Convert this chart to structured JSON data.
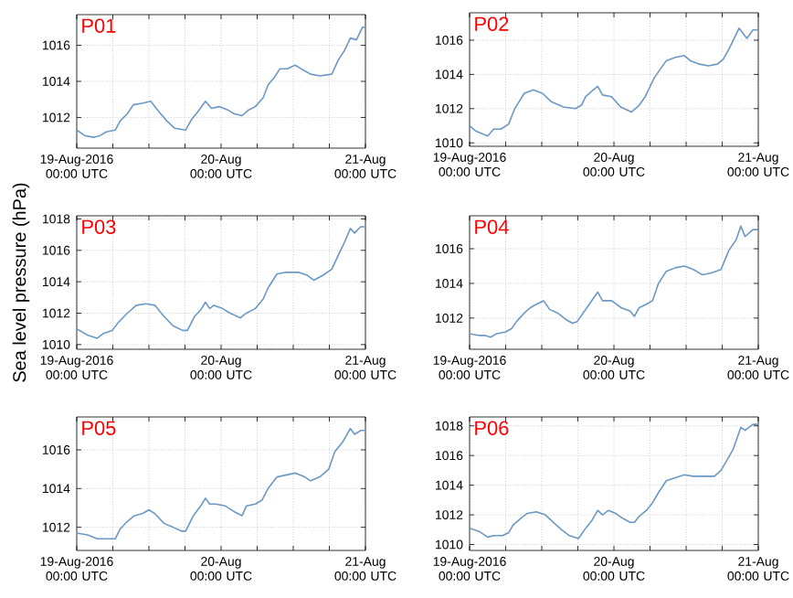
{
  "chart_data": [
    {
      "type": "line",
      "title": "P01",
      "xlim": [
        "2016-08-19T00:00",
        "2016-08-21T00:00"
      ],
      "ylim": [
        1010.3,
        1017.7
      ],
      "grid": true,
      "xticks": [
        {
          "value": "2016-08-19T00:00",
          "label": "19-Aug-2016 00:00 UTC"
        },
        {
          "value": "2016-08-19T06:00",
          "label": null
        },
        {
          "value": "2016-08-19T12:00",
          "label": null
        },
        {
          "value": "2016-08-19T18:00",
          "label": null
        },
        {
          "value": "2016-08-20T00:00",
          "label": "20-Aug 00:00 UTC"
        },
        {
          "value": "2016-08-20T06:00",
          "label": null
        },
        {
          "value": "2016-08-20T12:00",
          "label": null
        },
        {
          "value": "2016-08-20T18:00",
          "label": null
        },
        {
          "value": "2016-08-21T00:00",
          "label": "21-Aug 00:00 UTC"
        }
      ],
      "yticks": [
        1012,
        1014,
        1016
      ],
      "x": [
        "2016-08-19T00:00",
        "2016-08-19T01:18",
        "2016-08-19T02:48",
        "2016-08-19T03:54",
        "2016-08-19T04:54",
        "2016-08-19T06:24",
        "2016-08-19T07:12",
        "2016-08-19T08:24",
        "2016-08-19T09:24",
        "2016-08-19T11:00",
        "2016-08-19T12:18",
        "2016-08-19T13:42",
        "2016-08-19T15:00",
        "2016-08-19T16:18",
        "2016-08-19T18:06",
        "2016-08-19T19:06",
        "2016-08-19T20:06",
        "2016-08-19T21:24",
        "2016-08-19T22:24",
        "2016-08-19T23:42",
        "2016-08-20T01:12",
        "2016-08-20T02:12",
        "2016-08-20T03:30",
        "2016-08-20T04:30",
        "2016-08-20T05:42",
        "2016-08-20T07:00",
        "2016-08-20T07:48",
        "2016-08-20T08:48",
        "2016-08-20T09:48",
        "2016-08-20T11:00",
        "2016-08-20T12:18",
        "2016-08-20T13:18",
        "2016-08-20T14:54",
        "2016-08-20T16:24",
        "2016-08-20T18:24",
        "2016-08-20T19:30",
        "2016-08-20T20:30",
        "2016-08-20T21:30",
        "2016-08-20T22:30",
        "2016-08-20T23:30",
        "2016-08-21T00:00"
      ],
      "series": [
        {
          "color": "#6b98c4",
          "values": [
            1011.3,
            1011.0,
            1010.9,
            1011.0,
            1011.2,
            1011.3,
            1011.8,
            1012.2,
            1012.7,
            1012.8,
            1012.9,
            1012.3,
            1011.8,
            1011.4,
            1011.3,
            1011.9,
            1012.3,
            1012.9,
            1012.5,
            1012.6,
            1012.4,
            1012.2,
            1012.1,
            1012.4,
            1012.6,
            1013.1,
            1013.8,
            1014.2,
            1014.7,
            1014.7,
            1014.9,
            1014.7,
            1014.4,
            1014.3,
            1014.4,
            1015.2,
            1015.7,
            1016.4,
            1016.3,
            1017.0,
            1017.0
          ]
        }
      ]
    },
    {
      "type": "line",
      "title": "P02",
      "xlim": [
        "2016-08-19T00:00",
        "2016-08-21T00:00"
      ],
      "ylim": [
        1009.8,
        1017.6
      ],
      "grid": true,
      "xticks": [
        {
          "value": "2016-08-19T00:00",
          "label": "19-Aug-2016 00:00 UTC"
        },
        {
          "value": "2016-08-19T06:00",
          "label": null
        },
        {
          "value": "2016-08-19T12:00",
          "label": null
        },
        {
          "value": "2016-08-19T18:00",
          "label": null
        },
        {
          "value": "2016-08-20T00:00",
          "label": "20-Aug 00:00 UTC"
        },
        {
          "value": "2016-08-20T06:00",
          "label": null
        },
        {
          "value": "2016-08-20T12:00",
          "label": null
        },
        {
          "value": "2016-08-20T18:00",
          "label": null
        },
        {
          "value": "2016-08-21T00:00",
          "label": "21-Aug 00:00 UTC"
        }
      ],
      "yticks": [
        1010,
        1012,
        1014,
        1016
      ],
      "x": [
        "2016-08-19T00:00",
        "2016-08-19T01:00",
        "2016-08-19T03:00",
        "2016-08-19T04:00",
        "2016-08-19T05:12",
        "2016-08-19T06:30",
        "2016-08-19T07:30",
        "2016-08-19T09:06",
        "2016-08-19T10:36",
        "2016-08-19T12:06",
        "2016-08-19T13:36",
        "2016-08-19T15:36",
        "2016-08-19T17:36",
        "2016-08-19T18:36",
        "2016-08-19T19:18",
        "2016-08-19T20:36",
        "2016-08-19T21:18",
        "2016-08-19T22:06",
        "2016-08-19T23:36",
        "2016-08-20T01:06",
        "2016-08-20T02:54",
        "2016-08-20T04:12",
        "2016-08-20T05:12",
        "2016-08-20T06:42",
        "2016-08-20T08:42",
        "2016-08-20T10:12",
        "2016-08-20T11:42",
        "2016-08-20T12:42",
        "2016-08-20T14:12",
        "2016-08-20T15:42",
        "2016-08-20T17:12",
        "2016-08-20T18:12",
        "2016-08-20T19:18",
        "2016-08-20T20:48",
        "2016-08-20T22:06",
        "2016-08-20T23:06",
        "2016-08-21T00:00"
      ],
      "series": [
        {
          "color": "#6b98c4",
          "values": [
            1011.0,
            1010.7,
            1010.4,
            1010.8,
            1010.8,
            1011.1,
            1012.0,
            1012.9,
            1013.1,
            1012.9,
            1012.4,
            1012.1,
            1012.0,
            1012.2,
            1012.7,
            1013.1,
            1013.3,
            1012.8,
            1012.7,
            1012.1,
            1011.8,
            1012.2,
            1012.7,
            1013.8,
            1014.8,
            1015.0,
            1015.1,
            1014.8,
            1014.6,
            1014.5,
            1014.6,
            1014.9,
            1015.6,
            1016.7,
            1016.1,
            1016.6,
            1016.6
          ]
        }
      ]
    },
    {
      "type": "line",
      "title": "P03",
      "ylabel": "Sea level pressure (hPa)",
      "xlim": [
        "2016-08-19T00:00",
        "2016-08-21T00:00"
      ],
      "ylim": [
        1009.7,
        1018.2
      ],
      "grid": true,
      "xticks": [
        {
          "value": "2016-08-19T00:00",
          "label": "19-Aug-2016 00:00 UTC"
        },
        {
          "value": "2016-08-19T06:00",
          "label": null
        },
        {
          "value": "2016-08-19T12:00",
          "label": null
        },
        {
          "value": "2016-08-19T18:00",
          "label": null
        },
        {
          "value": "2016-08-20T00:00",
          "label": "20-Aug 00:00 UTC"
        },
        {
          "value": "2016-08-20T06:00",
          "label": null
        },
        {
          "value": "2016-08-20T12:00",
          "label": null
        },
        {
          "value": "2016-08-20T18:00",
          "label": null
        },
        {
          "value": "2016-08-21T00:00",
          "label": "21-Aug 00:00 UTC"
        }
      ],
      "yticks": [
        1010,
        1012,
        1014,
        1016,
        1018
      ],
      "x": [
        "2016-08-19T00:00",
        "2016-08-19T01:48",
        "2016-08-19T03:24",
        "2016-08-19T04:24",
        "2016-08-19T05:54",
        "2016-08-19T06:54",
        "2016-08-19T08:24",
        "2016-08-19T09:54",
        "2016-08-19T11:30",
        "2016-08-19T13:00",
        "2016-08-19T14:30",
        "2016-08-19T16:00",
        "2016-08-19T17:36",
        "2016-08-19T18:24",
        "2016-08-19T19:36",
        "2016-08-19T20:36",
        "2016-08-19T21:24",
        "2016-08-19T22:06",
        "2016-08-19T22:48",
        "2016-08-20T00:12",
        "2016-08-20T01:30",
        "2016-08-20T03:12",
        "2016-08-20T04:12",
        "2016-08-20T05:42",
        "2016-08-20T07:00",
        "2016-08-20T07:48",
        "2016-08-20T09:18",
        "2016-08-20T10:48",
        "2016-08-20T12:54",
        "2016-08-20T14:24",
        "2016-08-20T15:24",
        "2016-08-20T16:54",
        "2016-08-20T18:24",
        "2016-08-20T19:30",
        "2016-08-20T20:30",
        "2016-08-20T21:30",
        "2016-08-20T22:12",
        "2016-08-20T23:12",
        "2016-08-21T00:00"
      ],
      "series": [
        {
          "color": "#6b98c4",
          "values": [
            1011.0,
            1010.6,
            1010.4,
            1010.7,
            1010.9,
            1011.4,
            1012.0,
            1012.5,
            1012.6,
            1012.5,
            1011.8,
            1011.2,
            1010.9,
            1010.9,
            1011.8,
            1012.2,
            1012.7,
            1012.3,
            1012.5,
            1012.3,
            1012.0,
            1011.7,
            1012.0,
            1012.3,
            1012.9,
            1013.6,
            1014.5,
            1014.6,
            1014.6,
            1014.4,
            1014.1,
            1014.4,
            1014.8,
            1015.7,
            1016.5,
            1017.4,
            1017.1,
            1017.5,
            1017.5
          ]
        }
      ]
    },
    {
      "type": "line",
      "title": "P04",
      "xlim": [
        "2016-08-19T00:00",
        "2016-08-21T00:00"
      ],
      "ylim": [
        1010.2,
        1017.9
      ],
      "grid": true,
      "xticks": [
        {
          "value": "2016-08-19T00:00",
          "label": "19-Aug-2016 00:00 UTC"
        },
        {
          "value": "2016-08-19T06:00",
          "label": null
        },
        {
          "value": "2016-08-19T12:00",
          "label": null
        },
        {
          "value": "2016-08-19T18:00",
          "label": null
        },
        {
          "value": "2016-08-20T00:00",
          "label": "20-Aug 00:00 UTC"
        },
        {
          "value": "2016-08-20T06:00",
          "label": null
        },
        {
          "value": "2016-08-20T12:00",
          "label": null
        },
        {
          "value": "2016-08-20T18:00",
          "label": null
        },
        {
          "value": "2016-08-21T00:00",
          "label": "21-Aug 00:00 UTC"
        }
      ],
      "yticks": [
        1012,
        1014,
        1016
      ],
      "x": [
        "2016-08-19T00:00",
        "2016-08-19T01:30",
        "2016-08-19T02:30",
        "2016-08-19T03:30",
        "2016-08-19T04:30",
        "2016-08-19T06:00",
        "2016-08-19T07:00",
        "2016-08-19T07:48",
        "2016-08-19T09:06",
        "2016-08-19T10:06",
        "2016-08-19T11:06",
        "2016-08-19T12:18",
        "2016-08-19T13:18",
        "2016-08-19T14:36",
        "2016-08-19T16:06",
        "2016-08-19T17:06",
        "2016-08-19T17:54",
        "2016-08-19T19:06",
        "2016-08-19T20:06",
        "2016-08-19T21:18",
        "2016-08-19T22:06",
        "2016-08-19T23:36",
        "2016-08-20T01:12",
        "2016-08-20T02:42",
        "2016-08-20T03:24",
        "2016-08-20T04:12",
        "2016-08-20T05:24",
        "2016-08-20T06:24",
        "2016-08-20T07:24",
        "2016-08-20T08:42",
        "2016-08-20T10:12",
        "2016-08-20T11:42",
        "2016-08-20T13:12",
        "2016-08-20T14:42",
        "2016-08-20T16:12",
        "2016-08-20T17:48",
        "2016-08-20T19:06",
        "2016-08-20T20:18",
        "2016-08-20T21:06",
        "2016-08-20T21:48",
        "2016-08-20T23:06",
        "2016-08-21T00:00"
      ],
      "series": [
        {
          "color": "#6b98c4",
          "values": [
            1011.1,
            1011.0,
            1011.0,
            1010.9,
            1011.1,
            1011.2,
            1011.4,
            1011.8,
            1012.3,
            1012.6,
            1012.8,
            1013.0,
            1012.5,
            1012.3,
            1011.9,
            1011.7,
            1011.8,
            1012.4,
            1012.9,
            1013.5,
            1013.0,
            1013.0,
            1012.6,
            1012.4,
            1012.1,
            1012.6,
            1012.8,
            1013.0,
            1014.0,
            1014.7,
            1014.9,
            1015.0,
            1014.8,
            1014.5,
            1014.6,
            1014.8,
            1015.9,
            1016.5,
            1017.3,
            1016.7,
            1017.1,
            1017.1
          ]
        }
      ]
    },
    {
      "type": "line",
      "title": "P05",
      "xlim": [
        "2016-08-19T00:00",
        "2016-08-21T00:00"
      ],
      "ylim": [
        1010.8,
        1017.7
      ],
      "grid": true,
      "xticks": [
        {
          "value": "2016-08-19T00:00",
          "label": "19-Aug-2016 00:00 UTC"
        },
        {
          "value": "2016-08-19T06:00",
          "label": null
        },
        {
          "value": "2016-08-19T12:00",
          "label": null
        },
        {
          "value": "2016-08-19T18:00",
          "label": null
        },
        {
          "value": "2016-08-20T00:00",
          "label": "20-Aug 00:00 UTC"
        },
        {
          "value": "2016-08-20T06:00",
          "label": null
        },
        {
          "value": "2016-08-20T12:00",
          "label": null
        },
        {
          "value": "2016-08-20T18:00",
          "label": null
        },
        {
          "value": "2016-08-21T00:00",
          "label": "21-Aug 00:00 UTC"
        }
      ],
      "yticks": [
        1012,
        1014,
        1016
      ],
      "x": [
        "2016-08-19T00:00",
        "2016-08-19T01:48",
        "2016-08-19T03:24",
        "2016-08-19T04:54",
        "2016-08-19T06:24",
        "2016-08-19T07:12",
        "2016-08-19T08:24",
        "2016-08-19T09:36",
        "2016-08-19T10:54",
        "2016-08-19T12:00",
        "2016-08-19T13:00",
        "2016-08-19T14:30",
        "2016-08-19T16:00",
        "2016-08-19T17:24",
        "2016-08-19T18:06",
        "2016-08-19T19:24",
        "2016-08-19T20:36",
        "2016-08-19T21:24",
        "2016-08-19T22:06",
        "2016-08-19T23:06",
        "2016-08-20T00:42",
        "2016-08-20T02:12",
        "2016-08-20T03:30",
        "2016-08-20T04:12",
        "2016-08-20T05:42",
        "2016-08-20T06:48",
        "2016-08-20T07:48",
        "2016-08-20T09:18",
        "2016-08-20T10:48",
        "2016-08-20T12:18",
        "2016-08-20T13:54",
        "2016-08-20T14:54",
        "2016-08-20T16:24",
        "2016-08-20T17:54",
        "2016-08-20T18:54",
        "2016-08-20T20:12",
        "2016-08-20T21:30",
        "2016-08-20T22:12",
        "2016-08-20T23:12",
        "2016-08-21T00:00"
      ],
      "series": [
        {
          "color": "#6b98c4",
          "values": [
            1011.7,
            1011.6,
            1011.4,
            1011.4,
            1011.4,
            1011.9,
            1012.3,
            1012.6,
            1012.7,
            1012.9,
            1012.7,
            1012.2,
            1012.0,
            1011.8,
            1011.8,
            1012.6,
            1013.1,
            1013.5,
            1013.2,
            1013.2,
            1013.1,
            1012.8,
            1012.6,
            1013.1,
            1013.2,
            1013.4,
            1014.0,
            1014.6,
            1014.7,
            1014.8,
            1014.6,
            1014.4,
            1014.6,
            1015.0,
            1015.9,
            1016.4,
            1017.1,
            1016.8,
            1017.0,
            1017.0
          ]
        }
      ]
    },
    {
      "type": "line",
      "title": "P06",
      "xlim": [
        "2016-08-19T00:00",
        "2016-08-21T00:00"
      ],
      "ylim": [
        1009.6,
        1018.6
      ],
      "grid": true,
      "xticks": [
        {
          "value": "2016-08-19T00:00",
          "label": "19-Aug-2016 00:00 UTC"
        },
        {
          "value": "2016-08-19T06:00",
          "label": null
        },
        {
          "value": "2016-08-19T12:00",
          "label": null
        },
        {
          "value": "2016-08-19T18:00",
          "label": null
        },
        {
          "value": "2016-08-20T00:00",
          "label": "20-Aug 00:00 UTC"
        },
        {
          "value": "2016-08-20T06:00",
          "label": null
        },
        {
          "value": "2016-08-20T12:00",
          "label": null
        },
        {
          "value": "2016-08-20T18:00",
          "label": null
        },
        {
          "value": "2016-08-21T00:00",
          "label": "21-Aug 00:00 UTC"
        }
      ],
      "yticks": [
        1010,
        1012,
        1014,
        1016,
        1018
      ],
      "x": [
        "2016-08-19T00:00",
        "2016-08-19T01:30",
        "2016-08-19T03:00",
        "2016-08-19T04:00",
        "2016-08-19T05:30",
        "2016-08-19T06:30",
        "2016-08-19T07:12",
        "2016-08-19T08:36",
        "2016-08-19T09:36",
        "2016-08-19T11:06",
        "2016-08-19T12:36",
        "2016-08-19T13:54",
        "2016-08-19T15:18",
        "2016-08-19T16:36",
        "2016-08-19T18:06",
        "2016-08-19T19:18",
        "2016-08-19T20:18",
        "2016-08-19T21:18",
        "2016-08-19T22:06",
        "2016-08-19T23:06",
        "2016-08-20T00:18",
        "2016-08-20T01:18",
        "2016-08-20T02:42",
        "2016-08-20T03:24",
        "2016-08-20T04:12",
        "2016-08-20T05:24",
        "2016-08-20T06:24",
        "2016-08-20T07:24",
        "2016-08-20T08:42",
        "2016-08-20T10:12",
        "2016-08-20T11:42",
        "2016-08-20T13:12",
        "2016-08-20T15:12",
        "2016-08-20T16:42",
        "2016-08-20T17:48",
        "2016-08-20T18:48",
        "2016-08-20T19:48",
        "2016-08-20T21:06",
        "2016-08-20T21:48",
        "2016-08-20T23:06",
        "2016-08-21T00:00"
      ],
      "series": [
        {
          "color": "#6b98c4",
          "values": [
            1011.1,
            1010.9,
            1010.5,
            1010.6,
            1010.6,
            1010.8,
            1011.3,
            1011.8,
            1012.1,
            1012.2,
            1012.0,
            1011.5,
            1011.0,
            1010.6,
            1010.4,
            1011.1,
            1011.6,
            1012.3,
            1012.0,
            1012.3,
            1012.1,
            1011.8,
            1011.5,
            1011.5,
            1011.9,
            1012.3,
            1012.8,
            1013.5,
            1014.3,
            1014.5,
            1014.7,
            1014.6,
            1014.6,
            1014.6,
            1015.0,
            1015.7,
            1016.4,
            1017.9,
            1017.7,
            1018.1,
            1018.1
          ]
        }
      ]
    }
  ]
}
